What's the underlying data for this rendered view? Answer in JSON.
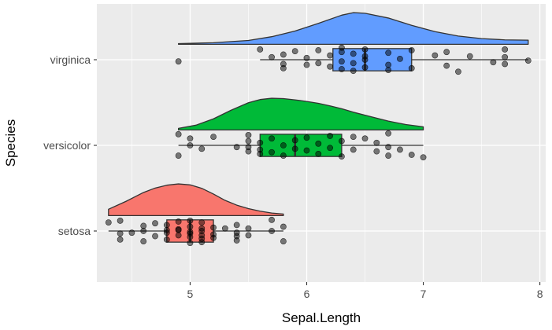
{
  "chart_data": {
    "type": "raincloud",
    "xlabel": "Sepal.Length",
    "ylabel": "Species",
    "xlim": [
      4.2,
      8.05
    ],
    "x_ticks": [
      5,
      6,
      7,
      8
    ],
    "categories": [
      "setosa",
      "versicolor",
      "virginica"
    ],
    "grid": true,
    "colors": {
      "panel": "#ebebeb",
      "grid": "#ffffff",
      "box_line": "#333333",
      "point": "#000000",
      "setosa": "#F8766D",
      "versicolor": "#00BA38",
      "virginica": "#619CFF"
    },
    "groups": [
      {
        "name": "setosa",
        "color": "#F8766D",
        "box": {
          "min": 4.3,
          "q1": 4.8,
          "median": 5.0,
          "q3": 5.2,
          "max": 5.8
        },
        "density": {
          "x": [
            4.3,
            4.45,
            4.6,
            4.7,
            4.8,
            4.9,
            5.0,
            5.1,
            5.2,
            5.3,
            5.4,
            5.5,
            5.6,
            5.7,
            5.8
          ],
          "rel": [
            0.2,
            0.45,
            0.73,
            0.87,
            0.96,
            1.0,
            0.97,
            0.86,
            0.68,
            0.48,
            0.33,
            0.22,
            0.14,
            0.08,
            0.05
          ]
        },
        "points": [
          [
            4.3,
            -0.1
          ],
          [
            4.4,
            0.03
          ],
          [
            4.4,
            -0.12
          ],
          [
            4.4,
            0.1
          ],
          [
            4.5,
            0.02
          ],
          [
            4.6,
            0.12
          ],
          [
            4.6,
            0.0
          ],
          [
            4.6,
            -0.06
          ],
          [
            4.7,
            0.06
          ],
          [
            4.7,
            -0.09
          ],
          [
            4.8,
            0.02
          ],
          [
            4.8,
            0.1
          ],
          [
            4.8,
            -0.07
          ],
          [
            4.8,
            -0.01
          ],
          [
            4.9,
            -0.02
          ],
          [
            4.9,
            0.05
          ],
          [
            4.9,
            -0.11
          ],
          [
            4.9,
            -0.01
          ],
          [
            5.0,
            0.14
          ],
          [
            5.0,
            0.03
          ],
          [
            5.0,
            -0.05
          ],
          [
            5.0,
            0.07
          ],
          [
            5.0,
            -0.12
          ],
          [
            5.0,
            0.01
          ],
          [
            5.1,
            0.13
          ],
          [
            5.1,
            0.05
          ],
          [
            5.1,
            -0.03
          ],
          [
            5.1,
            0.09
          ],
          [
            5.1,
            -0.1
          ],
          [
            5.1,
            0.0
          ],
          [
            5.2,
            0.08
          ],
          [
            5.2,
            -0.04
          ],
          [
            5.2,
            0.04
          ],
          [
            5.3,
            -0.03
          ],
          [
            5.4,
            0.11
          ],
          [
            5.4,
            0.02
          ],
          [
            5.4,
            -0.07
          ],
          [
            5.4,
            0.06
          ],
          [
            5.5,
            -0.03
          ],
          [
            5.5,
            0.05
          ],
          [
            5.7,
            0.0
          ],
          [
            5.7,
            -0.13
          ],
          [
            5.8,
            0.12
          ],
          [
            5.8,
            -0.05
          ]
        ]
      },
      {
        "name": "versicolor",
        "color": "#00BA38",
        "box": {
          "min": 4.9,
          "q1": 5.6,
          "median": 5.9,
          "q3": 6.3,
          "max": 7.0
        },
        "density": {
          "x": [
            4.9,
            5.05,
            5.2,
            5.35,
            5.5,
            5.6,
            5.7,
            5.8,
            5.9,
            6.0,
            6.1,
            6.2,
            6.3,
            6.4,
            6.55,
            6.7,
            6.85,
            7.0
          ],
          "rel": [
            0.05,
            0.15,
            0.35,
            0.62,
            0.86,
            0.96,
            1.0,
            0.99,
            0.95,
            0.9,
            0.84,
            0.76,
            0.67,
            0.56,
            0.42,
            0.28,
            0.17,
            0.1
          ]
        },
        "points": [
          [
            4.9,
            -0.13
          ],
          [
            4.9,
            0.12
          ],
          [
            5.0,
            0.0
          ],
          [
            5.0,
            -0.08
          ],
          [
            5.1,
            0.04
          ],
          [
            5.2,
            -0.1
          ],
          [
            5.4,
            0.02
          ],
          [
            5.5,
            -0.05
          ],
          [
            5.5,
            0.07
          ],
          [
            5.5,
            -0.12
          ],
          [
            5.5,
            0.02
          ],
          [
            5.6,
            0.1
          ],
          [
            5.6,
            -0.03
          ],
          [
            5.6,
            0.05
          ],
          [
            5.7,
            0.08
          ],
          [
            5.7,
            -0.08
          ],
          [
            5.8,
            0.12
          ],
          [
            5.8,
            0.0
          ],
          [
            5.9,
            -0.06
          ],
          [
            5.9,
            0.04
          ],
          [
            6.0,
            -0.09
          ],
          [
            6.0,
            0.06
          ],
          [
            6.1,
            0.1
          ],
          [
            6.1,
            -0.02
          ],
          [
            6.2,
            -0.11
          ],
          [
            6.2,
            0.03
          ],
          [
            6.3,
            0.13
          ],
          [
            6.3,
            -0.05
          ],
          [
            6.4,
            -0.1
          ],
          [
            6.4,
            0.05
          ],
          [
            6.5,
            -0.08
          ],
          [
            6.6,
            0.07
          ],
          [
            6.6,
            -0.03
          ],
          [
            6.7,
            0.12
          ],
          [
            6.7,
            0.02
          ],
          [
            6.7,
            -0.14
          ],
          [
            6.8,
            0.05
          ],
          [
            6.9,
            0.11
          ],
          [
            7.0,
            0.14
          ]
        ]
      },
      {
        "name": "virginica",
        "color": "#619CFF",
        "box": {
          "min": 5.6,
          "q1": 6.225,
          "median": 6.5,
          "q3": 6.9,
          "max": 7.9
        },
        "density": {
          "x": [
            4.9,
            5.2,
            5.5,
            5.7,
            5.9,
            6.1,
            6.3,
            6.4,
            6.5,
            6.7,
            6.9,
            7.1,
            7.3,
            7.5,
            7.7,
            7.9
          ],
          "rel": [
            0.02,
            0.05,
            0.12,
            0.24,
            0.42,
            0.66,
            0.92,
            1.0,
            0.98,
            0.83,
            0.6,
            0.4,
            0.26,
            0.18,
            0.14,
            0.13
          ]
        },
        "points": [
          [
            4.9,
            0.02
          ],
          [
            5.6,
            -0.12
          ],
          [
            5.7,
            -0.03
          ],
          [
            5.8,
            0.05
          ],
          [
            5.8,
            -0.06
          ],
          [
            5.8,
            0.1
          ],
          [
            5.9,
            -0.1
          ],
          [
            6.0,
            0.06
          ],
          [
            6.0,
            -0.02
          ],
          [
            6.1,
            0.04
          ],
          [
            6.1,
            -0.11
          ],
          [
            6.2,
            0.08
          ],
          [
            6.2,
            -0.05
          ],
          [
            6.3,
            -0.14
          ],
          [
            6.3,
            0.02
          ],
          [
            6.3,
            -0.09
          ],
          [
            6.3,
            0.11
          ],
          [
            6.4,
            -0.07
          ],
          [
            6.4,
            0.04
          ],
          [
            6.4,
            0.13
          ],
          [
            6.5,
            -0.12
          ],
          [
            6.5,
            0.0
          ],
          [
            6.5,
            0.09
          ],
          [
            6.5,
            -0.04
          ],
          [
            6.7,
            0.06
          ],
          [
            6.7,
            -0.08
          ],
          [
            6.7,
            0.12
          ],
          [
            6.8,
            -0.01
          ],
          [
            6.9,
            0.1
          ],
          [
            6.9,
            -0.11
          ],
          [
            7.1,
            -0.05
          ],
          [
            7.2,
            0.07
          ],
          [
            7.2,
            -0.09
          ],
          [
            7.3,
            0.14
          ],
          [
            7.4,
            -0.04
          ],
          [
            7.6,
            0.03
          ],
          [
            7.7,
            0.05
          ],
          [
            7.7,
            -0.03
          ],
          [
            7.7,
            -0.12
          ],
          [
            7.9,
            0.01
          ]
        ]
      }
    ]
  }
}
